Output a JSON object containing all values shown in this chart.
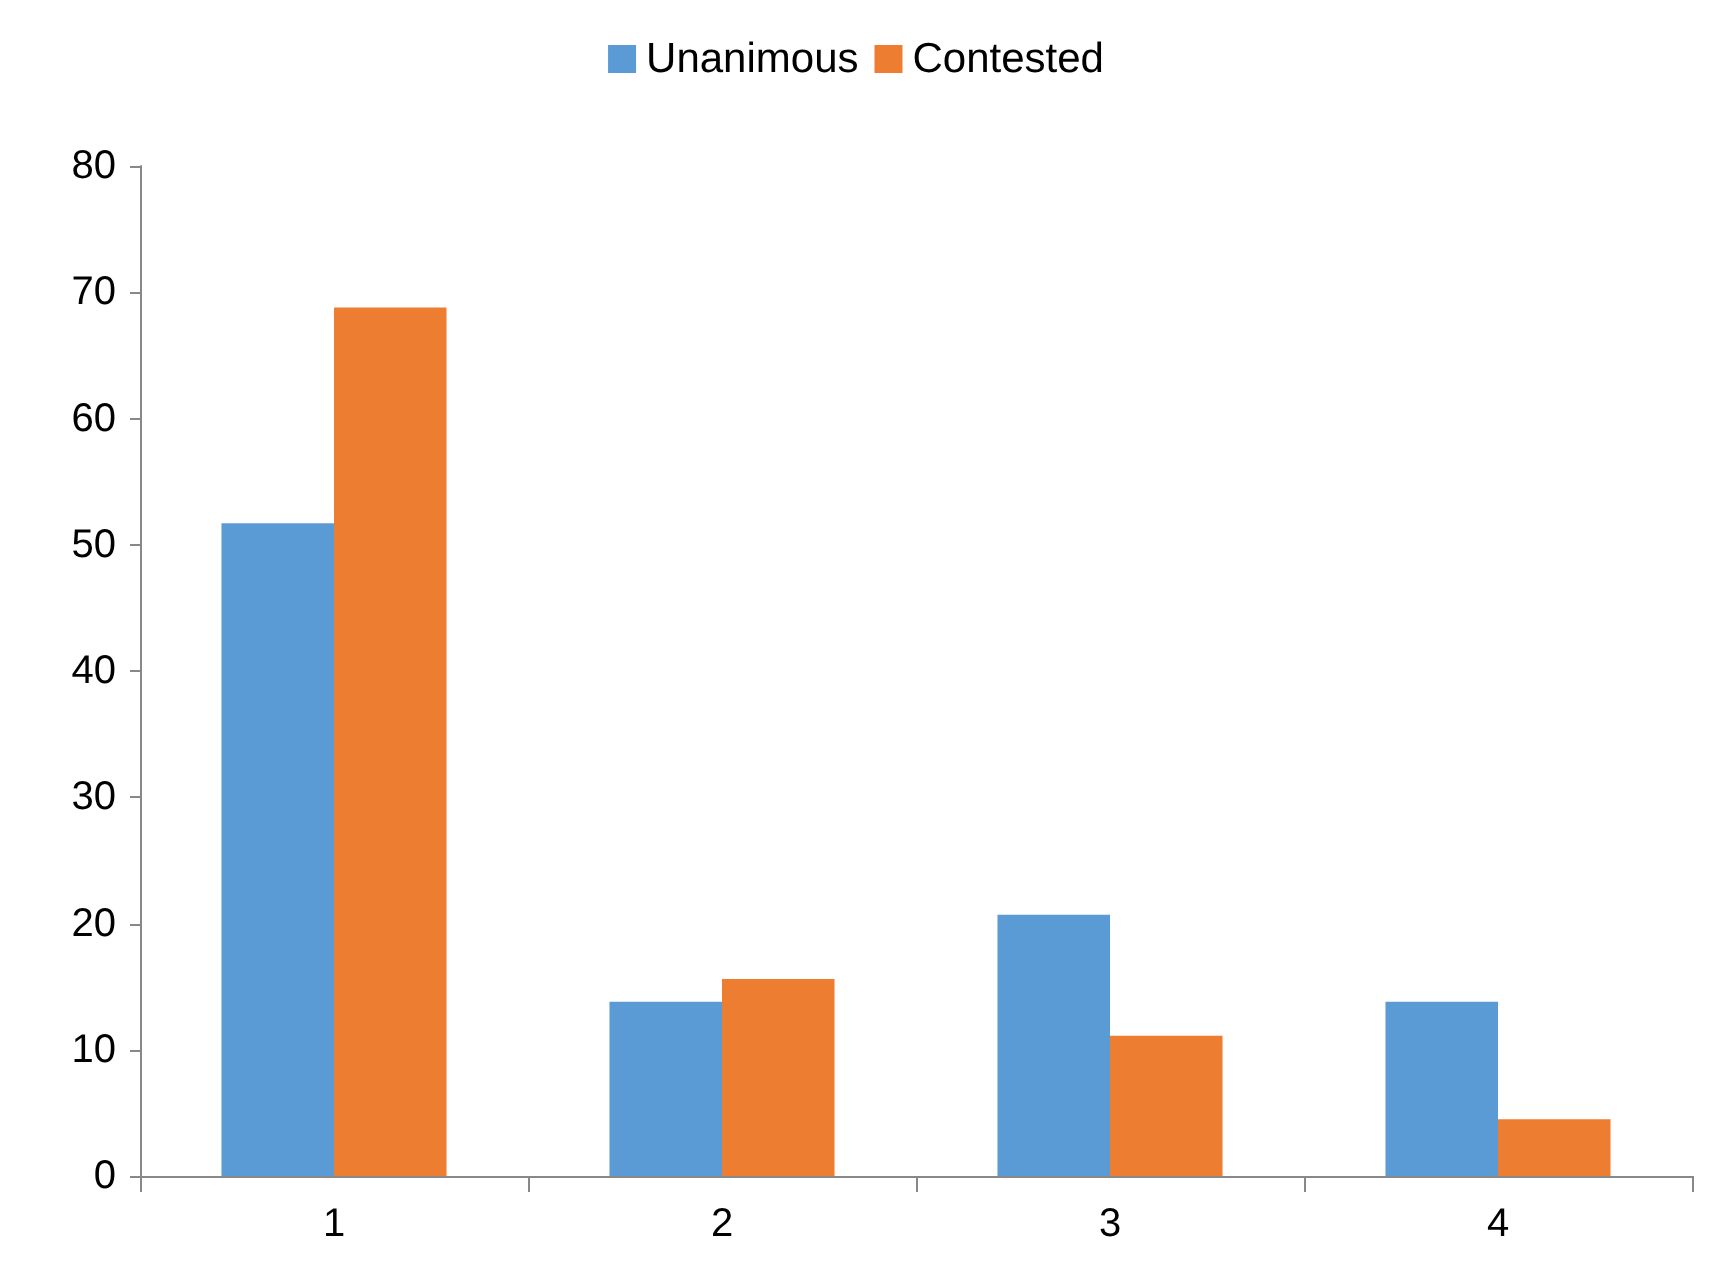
{
  "chart_data": {
    "type": "bar",
    "categories": [
      "1",
      "2",
      "3",
      "4"
    ],
    "series": [
      {
        "name": "Unanimous",
        "color": "#5b9bd5",
        "values": [
          51.7,
          13.8,
          20.7,
          13.8
        ]
      },
      {
        "name": "Contested",
        "color": "#ed7d31",
        "values": [
          68.8,
          15.6,
          11.1,
          4.5
        ]
      }
    ],
    "ylim": [
      0,
      80
    ],
    "yticks": [
      0,
      10,
      20,
      30,
      40,
      50,
      60,
      70,
      80
    ],
    "grid": false,
    "legend": "top"
  }
}
